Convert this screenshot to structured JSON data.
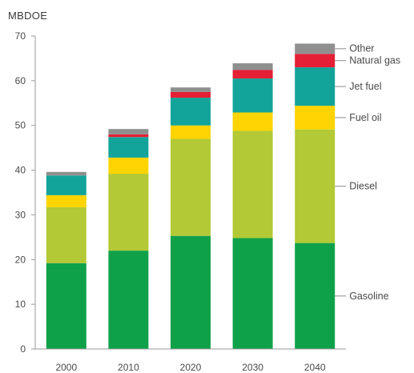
{
  "chart_data": {
    "type": "bar",
    "stacked": true,
    "ylabel": "MBDOE",
    "ylim": [
      0,
      70
    ],
    "yticks": [
      0,
      10,
      20,
      30,
      40,
      50,
      60,
      70
    ],
    "grid": false,
    "legend_placement": "right",
    "categories": [
      "2000",
      "2010",
      "2020",
      "2030",
      "2040"
    ],
    "series": [
      {
        "name": "Gasoline",
        "color": "#0fa14a",
        "values": [
          19.2,
          22.0,
          25.3,
          24.8,
          23.7
        ]
      },
      {
        "name": "Diesel",
        "color": "#b3c935",
        "values": [
          12.5,
          17.2,
          21.7,
          24.0,
          25.4
        ]
      },
      {
        "name": "Fuel oil",
        "color": "#ffd400",
        "values": [
          2.7,
          3.6,
          3.0,
          4.1,
          5.3
        ]
      },
      {
        "name": "Jet fuel",
        "color": "#12a49a",
        "values": [
          4.4,
          4.6,
          6.2,
          7.6,
          8.6
        ]
      },
      {
        "name": "Natural gas",
        "color": "#e41f36",
        "values": [
          0.0,
          0.6,
          1.3,
          1.9,
          3.0
        ]
      },
      {
        "name": "Other",
        "color": "#8f8f8f",
        "values": [
          0.8,
          1.2,
          1.0,
          1.5,
          2.3
        ]
      }
    ]
  }
}
